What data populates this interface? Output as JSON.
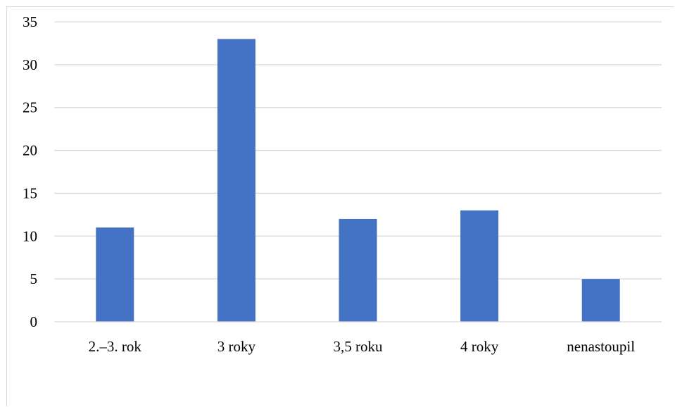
{
  "chart_data": {
    "type": "bar",
    "title": "",
    "xlabel": "",
    "ylabel": "",
    "categories": [
      "2.–3. rok",
      "3 roky",
      "3,5 roku",
      "4 roky",
      "nenastoupil"
    ],
    "values": [
      11,
      33,
      12,
      13,
      5
    ],
    "ylim": [
      0,
      35
    ],
    "yticks": [
      0,
      5,
      10,
      15,
      20,
      25,
      30,
      35
    ],
    "grid": true,
    "legend": "none",
    "bar_color": "#4472c4"
  }
}
